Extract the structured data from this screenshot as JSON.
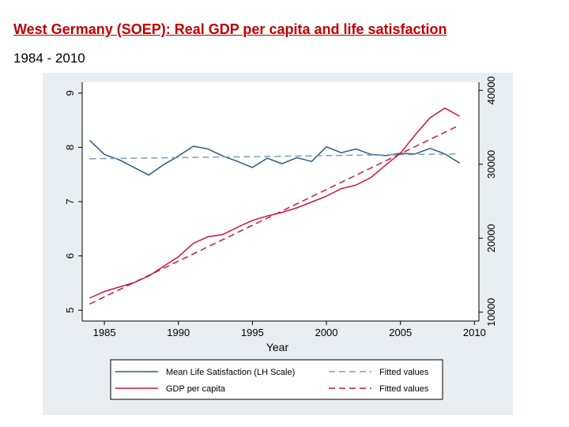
{
  "slide": {
    "title": "West Germany (SOEP): Real GDP per capita and life satisfaction",
    "subtitle": "1984 - 2010"
  },
  "colors": {
    "panel": "#e9eef2",
    "plot": "#ffffff",
    "satisfaction": "#2f5a7e",
    "satisfaction_fit": "#7d9db5",
    "gdp": "#c8193c",
    "gdp_fit": "#c8193c"
  },
  "chart_data": {
    "type": "line",
    "xlabel": "Year",
    "ylabel_left": "",
    "ylabel_right": "",
    "xlim": [
      1983.5,
      2010.3
    ],
    "xticks": [
      1985,
      1990,
      1995,
      2000,
      2005,
      2010
    ],
    "ylim_left": [
      4.8,
      9.2
    ],
    "yticks_left": [
      5,
      6,
      7,
      8,
      9
    ],
    "ylim_right": [
      8800,
      41100
    ],
    "yticks_right": [
      10000,
      20000,
      30000,
      40000
    ],
    "grid": false,
    "legend_position": "bottom",
    "series": [
      {
        "name": "Mean Life Satisfaction (LH Scale)",
        "axis": "left",
        "style": "solid",
        "color_key": "satisfaction",
        "x": [
          1984,
          1985,
          1986,
          1987,
          1988,
          1989,
          1990,
          1991,
          1992,
          1993,
          1994,
          1995,
          1996,
          1997,
          1998,
          1999,
          2000,
          2001,
          2002,
          2003,
          2004,
          2005,
          2006,
          2007,
          2008,
          2009
        ],
        "values": [
          8.13,
          7.87,
          7.77,
          7.63,
          7.49,
          7.68,
          7.84,
          8.02,
          7.97,
          7.84,
          7.74,
          7.63,
          7.8,
          7.7,
          7.81,
          7.74,
          8.01,
          7.9,
          7.97,
          7.87,
          7.85,
          7.89,
          7.88,
          7.98,
          7.88,
          7.71
        ]
      },
      {
        "name": "Fitted values",
        "axis": "left",
        "style": "dashed",
        "color_key": "satisfaction_fit",
        "x": [
          1984,
          2009
        ],
        "values": [
          7.79,
          7.88
        ]
      },
      {
        "name": "GDP per capita",
        "axis": "right",
        "style": "solid",
        "color_key": "gdp",
        "x": [
          1984,
          1985,
          1986,
          1987,
          1988,
          1989,
          1990,
          1991,
          1992,
          1993,
          1994,
          1995,
          1996,
          1997,
          1998,
          1999,
          2000,
          2001,
          2002,
          2003,
          2004,
          2005,
          2006,
          2007,
          2008,
          2009
        ],
        "values": [
          11900,
          12800,
          13400,
          14000,
          14900,
          16200,
          17500,
          19300,
          20200,
          20500,
          21500,
          22400,
          23000,
          23500,
          24100,
          24900,
          25700,
          26700,
          27200,
          28200,
          29900,
          31500,
          34000,
          36300,
          37600,
          36500
        ]
      },
      {
        "name": "Fitted values",
        "axis": "right",
        "style": "dashed",
        "color_key": "gdp_fit",
        "x": [
          1984,
          2009
        ],
        "values": [
          11100,
          35300
        ]
      }
    ]
  }
}
